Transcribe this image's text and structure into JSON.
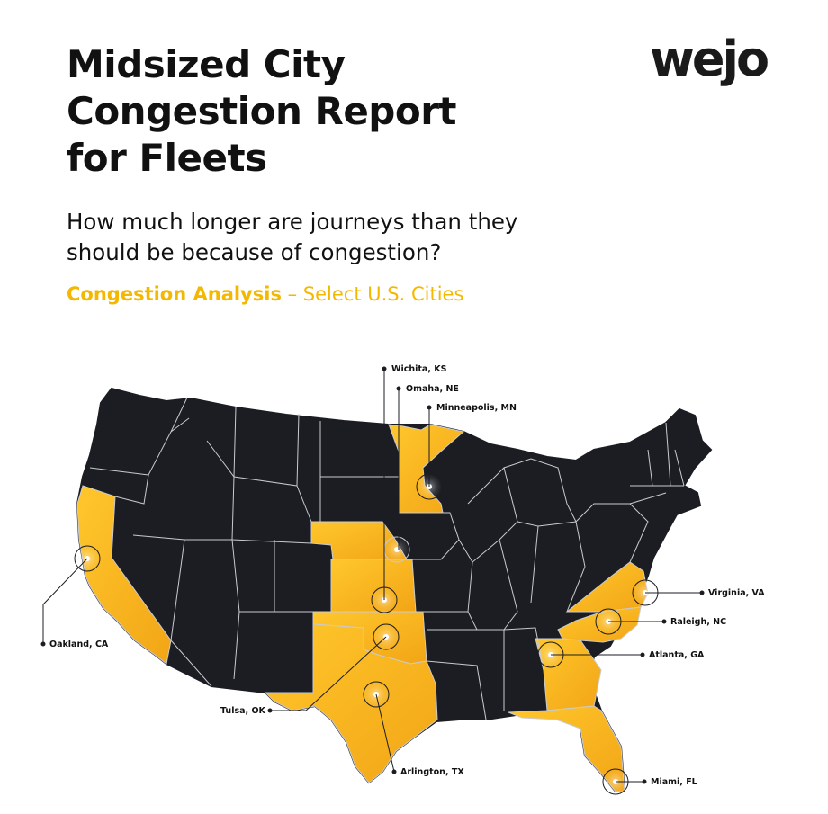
{
  "header": {
    "title_lines": [
      "Midsized City",
      "Congestion Report",
      "for Fleets"
    ],
    "logo": "wejo",
    "subtitle_lines": [
      "How much longer are journeys than they",
      "should be because of congestion?"
    ],
    "section_highlight": "Congestion Analysis",
    "section_rest": " – Select U.S. Cities"
  },
  "map": {
    "colors": {
      "state_default": "#1B1D23",
      "state_highlight": "#F5B800",
      "border": "#c9cbd0"
    },
    "highlighted_states": [
      "California",
      "Minnesota",
      "Nebraska",
      "Kansas",
      "Oklahoma",
      "Texas",
      "Virginia",
      "North Carolina",
      "Georgia",
      "Florida"
    ],
    "cities": [
      {
        "name": "Wichita, KS"
      },
      {
        "name": "Omaha, NE"
      },
      {
        "name": "Minneapolis, MN"
      },
      {
        "name": "Oakland, CA"
      },
      {
        "name": "Virginia, VA"
      },
      {
        "name": "Raleigh, NC"
      },
      {
        "name": "Atlanta, GA"
      },
      {
        "name": "Tulsa, OK"
      },
      {
        "name": "Arlington, TX"
      },
      {
        "name": "Miami, FL"
      }
    ]
  }
}
